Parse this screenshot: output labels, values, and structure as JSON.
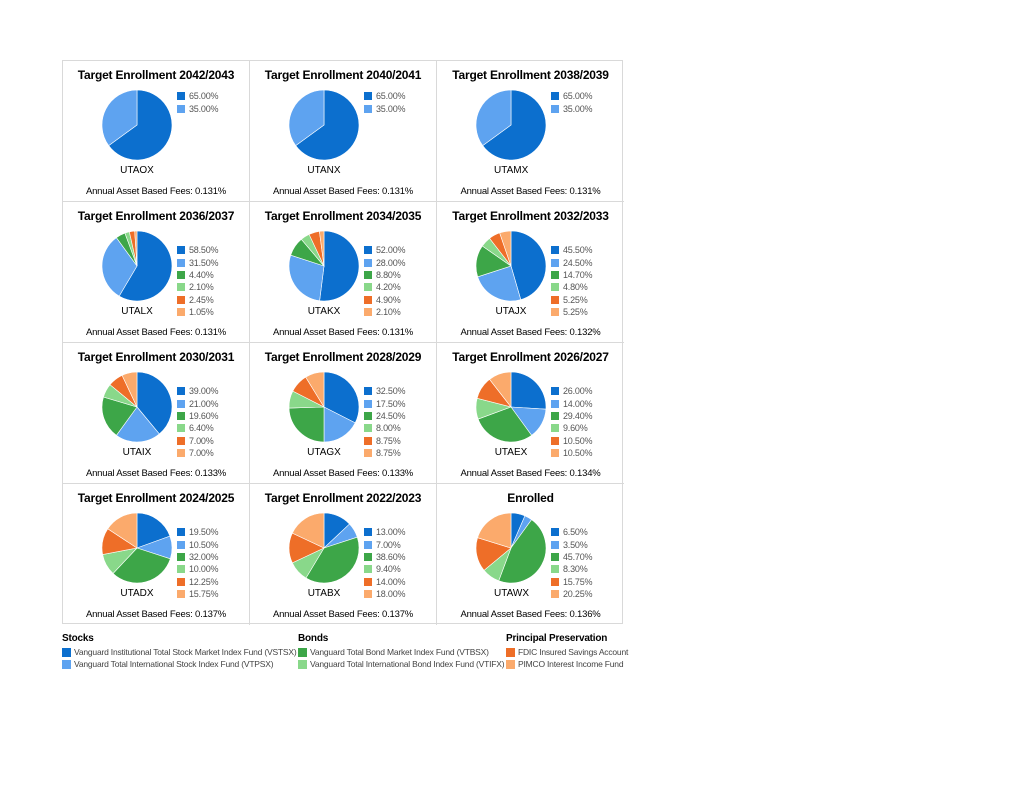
{
  "colors": {
    "vstsx": "#0c6fce",
    "vtpsx": "#5ea3f0",
    "vtbsx": "#3da648",
    "vtifx": "#89d88a",
    "fdic": "#ee6e28",
    "pimco": "#fbaa6c"
  },
  "chart_data": [
    {
      "type": "pie",
      "title": "Target Enrollment 2042/2043",
      "ticker": "UTAOX",
      "fees": "Annual Asset Based Fees: 0.131%",
      "values": [
        65.0,
        35.0
      ],
      "labels": [
        "65.00%",
        "35.00%"
      ],
      "series_keys": [
        "vstsx",
        "vtpsx"
      ]
    },
    {
      "type": "pie",
      "title": "Target Enrollment 2040/2041",
      "ticker": "UTANX",
      "fees": "Annual Asset Based Fees: 0.131%",
      "values": [
        65.0,
        35.0
      ],
      "labels": [
        "65.00%",
        "35.00%"
      ],
      "series_keys": [
        "vstsx",
        "vtpsx"
      ]
    },
    {
      "type": "pie",
      "title": "Target Enrollment 2038/2039",
      "ticker": "UTAMX",
      "fees": "Annual Asset Based Fees: 0.131%",
      "values": [
        65.0,
        35.0
      ],
      "labels": [
        "65.00%",
        "35.00%"
      ],
      "series_keys": [
        "vstsx",
        "vtpsx"
      ]
    },
    {
      "type": "pie",
      "title": "Target Enrollment 2036/2037",
      "ticker": "UTALX",
      "fees": "Annual Asset Based Fees: 0.131%",
      "values": [
        58.5,
        31.5,
        4.4,
        2.1,
        2.45,
        1.05
      ],
      "labels": [
        "58.50%",
        "31.50%",
        "4.40%",
        "2.10%",
        "2.45%",
        "1.05%"
      ],
      "series_keys": [
        "vstsx",
        "vtpsx",
        "vtbsx",
        "vtifx",
        "fdic",
        "pimco"
      ]
    },
    {
      "type": "pie",
      "title": "Target Enrollment 2034/2035",
      "ticker": "UTAKX",
      "fees": "Annual Asset Based Fees: 0.131%",
      "values": [
        52.0,
        28.0,
        8.8,
        4.2,
        4.9,
        2.1
      ],
      "labels": [
        "52.00%",
        "28.00%",
        "8.80%",
        "4.20%",
        "4.90%",
        "2.10%"
      ],
      "series_keys": [
        "vstsx",
        "vtpsx",
        "vtbsx",
        "vtifx",
        "fdic",
        "pimco"
      ]
    },
    {
      "type": "pie",
      "title": "Target Enrollment 2032/2033",
      "ticker": "UTAJX",
      "fees": "Annual Asset Based Fees: 0.132%",
      "values": [
        45.5,
        24.5,
        14.7,
        4.8,
        5.25,
        5.25
      ],
      "labels": [
        "45.50%",
        "24.50%",
        "14.70%",
        "4.80%",
        "5.25%",
        "5.25%"
      ],
      "series_keys": [
        "vstsx",
        "vtpsx",
        "vtbsx",
        "vtifx",
        "fdic",
        "pimco"
      ]
    },
    {
      "type": "pie",
      "title": "Target Enrollment 2030/2031",
      "ticker": "UTAIX",
      "fees": "Annual Asset Based Fees: 0.133%",
      "values": [
        39.0,
        21.0,
        19.6,
        6.4,
        7.0,
        7.0
      ],
      "labels": [
        "39.00%",
        "21.00%",
        "19.60%",
        "6.40%",
        "7.00%",
        "7.00%"
      ],
      "series_keys": [
        "vstsx",
        "vtpsx",
        "vtbsx",
        "vtifx",
        "fdic",
        "pimco"
      ]
    },
    {
      "type": "pie",
      "title": "Target Enrollment 2028/2029",
      "ticker": "UTAGX",
      "fees": "Annual Asset Based Fees: 0.133%",
      "values": [
        32.5,
        17.5,
        24.5,
        8.0,
        8.75,
        8.75
      ],
      "labels": [
        "32.50%",
        "17.50%",
        "24.50%",
        "8.00%",
        "8.75%",
        "8.75%"
      ],
      "series_keys": [
        "vstsx",
        "vtpsx",
        "vtbsx",
        "vtifx",
        "fdic",
        "pimco"
      ]
    },
    {
      "type": "pie",
      "title": "Target Enrollment 2026/2027",
      "ticker": "UTAEX",
      "fees": "Annual Asset Based Fees: 0.134%",
      "values": [
        26.0,
        14.0,
        29.4,
        9.6,
        10.5,
        10.5
      ],
      "labels": [
        "26.00%",
        "14.00%",
        "29.40%",
        "9.60%",
        "10.50%",
        "10.50%"
      ],
      "series_keys": [
        "vstsx",
        "vtpsx",
        "vtbsx",
        "vtifx",
        "fdic",
        "pimco"
      ]
    },
    {
      "type": "pie",
      "title": "Target Enrollment 2024/2025",
      "ticker": "UTADX",
      "fees": "Annual Asset Based Fees: 0.137%",
      "values": [
        19.5,
        10.5,
        32.0,
        10.0,
        12.25,
        15.75
      ],
      "labels": [
        "19.50%",
        "10.50%",
        "32.00%",
        "10.00%",
        "12.25%",
        "15.75%"
      ],
      "series_keys": [
        "vstsx",
        "vtpsx",
        "vtbsx",
        "vtifx",
        "fdic",
        "pimco"
      ]
    },
    {
      "type": "pie",
      "title": "Target Enrollment 2022/2023",
      "ticker": "UTABX",
      "fees": "Annual Asset Based Fees: 0.137%",
      "values": [
        13.0,
        7.0,
        38.6,
        9.4,
        14.0,
        18.0
      ],
      "labels": [
        "13.00%",
        "7.00%",
        "38.60%",
        "9.40%",
        "14.00%",
        "18.00%"
      ],
      "series_keys": [
        "vstsx",
        "vtpsx",
        "vtbsx",
        "vtifx",
        "fdic",
        "pimco"
      ]
    },
    {
      "type": "pie",
      "title": "Enrolled",
      "ticker": "UTAWX",
      "fees": "Annual Asset Based Fees: 0.136%",
      "values": [
        6.5,
        3.5,
        45.7,
        8.3,
        15.75,
        20.25
      ],
      "labels": [
        "6.50%",
        "3.50%",
        "45.70%",
        "8.30%",
        "15.75%",
        "20.25%"
      ],
      "series_keys": [
        "vstsx",
        "vtpsx",
        "vtbsx",
        "vtifx",
        "fdic",
        "pimco"
      ]
    }
  ],
  "legend": {
    "groups": [
      {
        "heading": "Stocks",
        "items": [
          {
            "key": "vstsx",
            "label": "Vanguard Institutional Total Stock Market Index Fund (VSTSX)"
          },
          {
            "key": "vtpsx",
            "label": "Vanguard Total International Stock Index Fund (VTPSX)"
          }
        ]
      },
      {
        "heading": "Bonds",
        "items": [
          {
            "key": "vtbsx",
            "label": "Vanguard Total Bond Market Index Fund (VTBSX)"
          },
          {
            "key": "vtifx",
            "label": "Vanguard Total International Bond Index Fund (VTIFX)"
          }
        ]
      },
      {
        "heading": "Principal Preservation",
        "items": [
          {
            "key": "fdic",
            "label": "FDIC Insured Savings Account"
          },
          {
            "key": "pimco",
            "label": "PIMCO Interest Income Fund"
          }
        ]
      }
    ]
  }
}
